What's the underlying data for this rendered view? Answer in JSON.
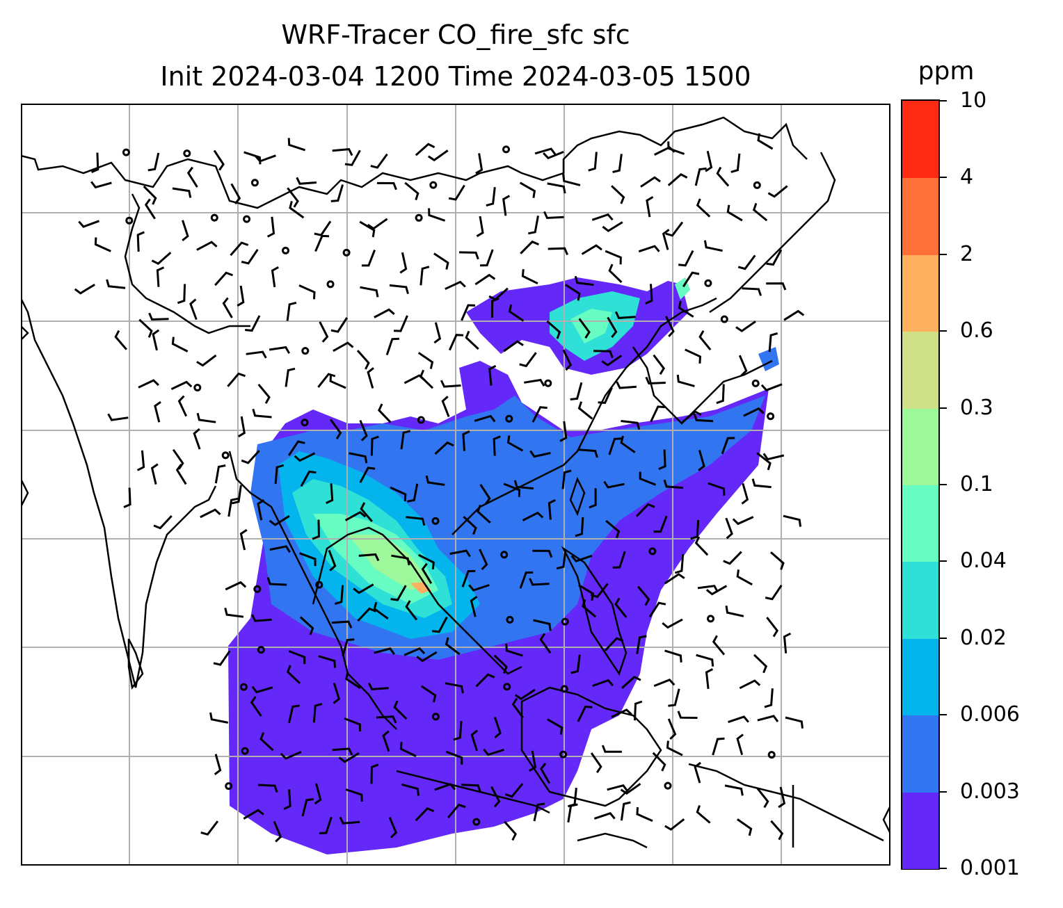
{
  "title": {
    "line1": "WRF-Tracer CO_fire_sfc sfc",
    "line2": "Init 2024-03-04 1200 Time 2024-03-05 1500"
  },
  "colorbar": {
    "unit": "ppm",
    "levels": [
      "0.001",
      "0.003",
      "0.006",
      "0.02",
      "0.04",
      "0.1",
      "0.3",
      "0.6",
      "2",
      "4",
      "10"
    ],
    "colors": [
      "#6428f8",
      "#3176f0",
      "#04b4ec",
      "#2ee0d6",
      "#66fcc2",
      "#9cf89a",
      "#d0e086",
      "#ffb05e",
      "#ff7038",
      "#ff2a14"
    ]
  },
  "map": {
    "coastline_color": "#000000",
    "gridline_color": "#b0b0b0",
    "wind_barb_color": "#000000"
  }
}
